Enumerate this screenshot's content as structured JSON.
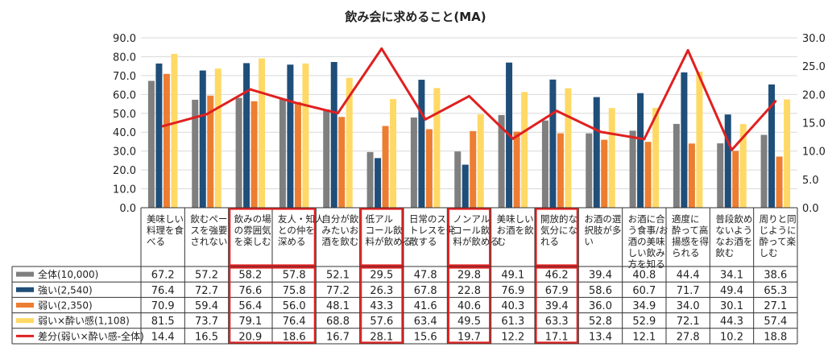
{
  "chart_data": {
    "type": "bar",
    "title": "飲み会に求めること(MA)",
    "left_axis": {
      "ylim": [
        0,
        90
      ],
      "ticks": [
        "90.0",
        "80.0",
        "70.0",
        "60.0",
        "50.0",
        "40.0",
        "30.0",
        "20.0",
        "10.0",
        "0.0"
      ]
    },
    "right_axis": {
      "ylim": [
        0,
        30
      ],
      "ticks": [
        "30.0",
        "25.0",
        "20.0",
        "15.0",
        "10.0",
        "5.0",
        "0.0"
      ]
    },
    "categories": [
      [
        "美味しい",
        "料理を食",
        "べる"
      ],
      [
        "飲むペー",
        "スを強要",
        "されない"
      ],
      [
        "飲みの場",
        "の雰囲気",
        "を楽しむ"
      ],
      [
        "友人・知人",
        "との仲を",
        "深める"
      ],
      [
        "自分が飲",
        "みたいお",
        "酒を飲む"
      ],
      [
        "低アル",
        "コール飲",
        "料が飲める"
      ],
      [
        "日常のス",
        "トレスを発",
        "散する"
      ],
      [
        "ノンアル",
        "コール飲",
        "料が飲める"
      ],
      [
        "美味しい",
        "お酒を飲",
        "む"
      ],
      [
        "開放的な",
        "気分にな",
        "れる"
      ],
      [
        "お酒の選",
        "択肢が多",
        "い"
      ],
      [
        "お酒に合",
        "う食事/お",
        "酒の美味",
        "しい飲み",
        "方を知る"
      ],
      [
        "適度に",
        "酔って高",
        "揚感を得",
        "られる"
      ],
      [
        "普段飲め",
        "ないよう",
        "なお酒を",
        "飲む"
      ],
      [
        "周りと同",
        "じように",
        "酔って楽",
        "しむ"
      ]
    ],
    "series": [
      {
        "name": "全体(10,000)",
        "color": "#7f7f7f",
        "type": "bar",
        "values": [
          67.2,
          57.2,
          58.2,
          57.8,
          52.1,
          29.5,
          47.8,
          29.8,
          49.1,
          46.2,
          39.4,
          40.8,
          44.4,
          34.1,
          38.6
        ]
      },
      {
        "name": "強い(2,540)",
        "color": "#1f4e79",
        "type": "bar",
        "values": [
          76.4,
          72.7,
          76.6,
          75.8,
          77.2,
          26.3,
          67.8,
          22.8,
          76.9,
          67.9,
          58.6,
          60.7,
          71.7,
          49.4,
          65.3
        ]
      },
      {
        "name": "弱い(2,350)",
        "color": "#ed7d31",
        "type": "bar",
        "values": [
          70.9,
          59.4,
          56.4,
          56.0,
          48.1,
          43.3,
          41.6,
          40.6,
          40.3,
          39.4,
          36.0,
          34.9,
          34.0,
          30.1,
          27.1
        ]
      },
      {
        "name": "弱い×酔い感(1,108)",
        "color": "#ffd966",
        "type": "bar",
        "values": [
          81.5,
          73.7,
          79.1,
          76.4,
          68.8,
          57.6,
          63.4,
          49.5,
          61.3,
          63.3,
          52.8,
          52.9,
          72.1,
          44.3,
          57.4
        ]
      },
      {
        "name": "差分(弱い×酔い感-全体)",
        "color": "#e02020",
        "type": "line",
        "axis": "right",
        "values": [
          14.4,
          16.5,
          20.9,
          18.6,
          16.7,
          28.1,
          15.6,
          19.7,
          12.2,
          17.1,
          13.4,
          12.1,
          27.8,
          10.2,
          18.8
        ]
      }
    ],
    "highlight_columns": [
      2,
      3,
      5,
      7,
      9
    ],
    "table_rows": [
      [
        "67.2",
        "57.2",
        "58.2",
        "57.8",
        "52.1",
        "29.5",
        "47.8",
        "29.8",
        "49.1",
        "46.2",
        "39.4",
        "40.8",
        "44.4",
        "34.1",
        "38.6"
      ],
      [
        "76.4",
        "72.7",
        "76.6",
        "75.8",
        "77.2",
        "26.3",
        "67.8",
        "22.8",
        "76.9",
        "67.9",
        "58.6",
        "60.7",
        "71.7",
        "49.4",
        "65.3"
      ],
      [
        "70.9",
        "59.4",
        "56.4",
        "56.0",
        "48.1",
        "43.3",
        "41.6",
        "40.6",
        "40.3",
        "39.4",
        "36.0",
        "34.9",
        "34.0",
        "30.1",
        "27.1"
      ],
      [
        "81.5",
        "73.7",
        "79.1",
        "76.4",
        "68.8",
        "57.6",
        "63.4",
        "49.5",
        "61.3",
        "63.3",
        "52.8",
        "52.9",
        "72.1",
        "44.3",
        "57.4"
      ],
      [
        "14.4",
        "16.5",
        "20.9",
        "18.6",
        "16.7",
        "28.1",
        "15.6",
        "19.7",
        "12.2",
        "17.1",
        "13.4",
        "12.1",
        "27.8",
        "10.2",
        "18.8"
      ]
    ]
  }
}
